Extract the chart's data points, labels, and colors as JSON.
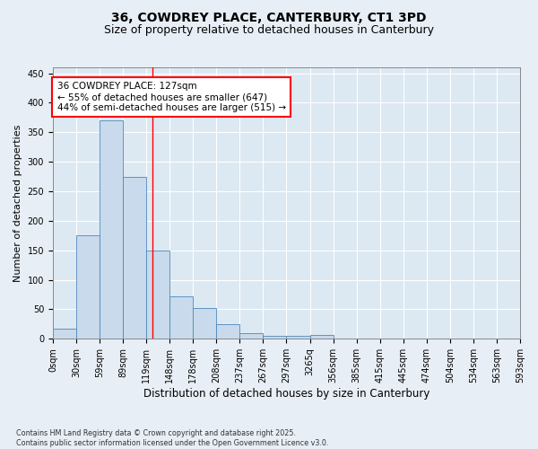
{
  "title1": "36, COWDREY PLACE, CANTERBURY, CT1 3PD",
  "title2": "Size of property relative to detached houses in Canterbury",
  "xlabel": "Distribution of detached houses by size in Canterbury",
  "ylabel": "Number of detached properties",
  "bin_labels": [
    "0sqm",
    "30sqm",
    "59sqm",
    "89sqm",
    "119sqm",
    "148sqm",
    "178sqm",
    "208sqm",
    "237sqm",
    "267sqm",
    "297sqm",
    "3265q",
    "356sqm",
    "385sqm",
    "415sqm",
    "445sqm",
    "474sqm",
    "504sqm",
    "534sqm",
    "563sqm",
    "593sqm"
  ],
  "bar_values": [
    18,
    175,
    370,
    275,
    150,
    72,
    53,
    25,
    10,
    5,
    5,
    6,
    0,
    0,
    0,
    0,
    0,
    0,
    0,
    0
  ],
  "bar_color": "#c8daeb",
  "bar_edge_color": "#4d88bb",
  "red_line_x": 4.276,
  "annotation_text": "36 COWDREY PLACE: 127sqm\n← 55% of detached houses are smaller (647)\n44% of semi-detached houses are larger (515) →",
  "ylim": [
    0,
    460
  ],
  "yticks": [
    0,
    50,
    100,
    150,
    200,
    250,
    300,
    350,
    400,
    450
  ],
  "footer1": "Contains HM Land Registry data © Crown copyright and database right 2025.",
  "footer2": "Contains public sector information licensed under the Open Government Licence v3.0.",
  "bg_color": "#e8eef5",
  "plot_bg_color": "#dce8f2",
  "grid_color": "#ffffff",
  "title_fontsize": 10,
  "subtitle_fontsize": 9,
  "annotation_fontsize": 7.5,
  "tick_fontsize": 7,
  "ylabel_fontsize": 8,
  "xlabel_fontsize": 8.5
}
